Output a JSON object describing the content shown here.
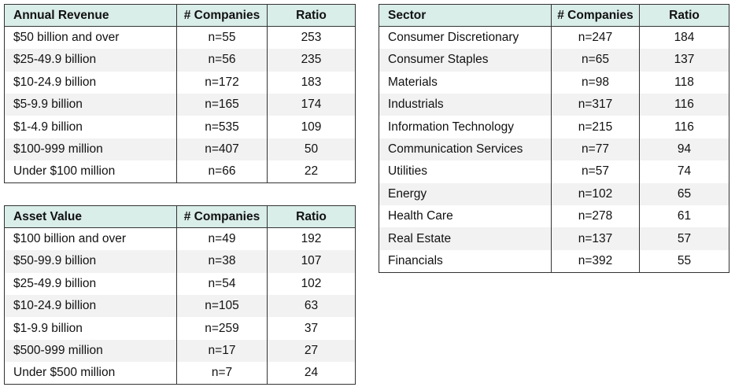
{
  "tables": {
    "revenue": {
      "headers": [
        "Annual Revenue",
        "# Companies",
        "Ratio"
      ],
      "rows": [
        [
          "$50 billion and over",
          "n=55",
          "253"
        ],
        [
          "$25-49.9 billion",
          "n=56",
          "235"
        ],
        [
          "$10-24.9 billion",
          "n=172",
          "183"
        ],
        [
          "$5-9.9 billion",
          "n=165",
          "174"
        ],
        [
          "$1-4.9 billion",
          "n=535",
          "109"
        ],
        [
          "$100-999 million",
          "n=407",
          "50"
        ],
        [
          "Under $100 million",
          "n=66",
          "22"
        ]
      ]
    },
    "asset": {
      "headers": [
        "Asset Value",
        "# Companies",
        "Ratio"
      ],
      "rows": [
        [
          "$100 billion and over",
          "n=49",
          "192"
        ],
        [
          "$50-99.9 billion",
          "n=38",
          "107"
        ],
        [
          "$25-49.9 billion",
          "n=54",
          "102"
        ],
        [
          "$10-24.9 billion",
          "n=105",
          "63"
        ],
        [
          "$1-9.9 billion",
          "n=259",
          "37"
        ],
        [
          "$500-999 million",
          "n=17",
          "27"
        ],
        [
          "Under $500 million",
          "n=7",
          "24"
        ]
      ]
    },
    "sector": {
      "headers": [
        "Sector",
        "# Companies",
        "Ratio"
      ],
      "rows": [
        [
          "Consumer Discretionary",
          "n=247",
          "184"
        ],
        [
          "Consumer Staples",
          "n=65",
          "137"
        ],
        [
          "Materials",
          "n=98",
          "118"
        ],
        [
          "Industrials",
          "n=317",
          "116"
        ],
        [
          "Information Technology",
          "n=215",
          "116"
        ],
        [
          "Communication Services",
          "n=77",
          "94"
        ],
        [
          "Utilities",
          "n=57",
          "74"
        ],
        [
          "Energy",
          "n=102",
          "65"
        ],
        [
          "Health Care",
          "n=278",
          "61"
        ],
        [
          "Real Estate",
          "n=137",
          "57"
        ],
        [
          "Financials",
          "n=392",
          "55"
        ]
      ]
    }
  },
  "colors": {
    "header_bg": "#d9ede9",
    "alt_row_bg": "#f2f2f2",
    "border": "#333333"
  }
}
